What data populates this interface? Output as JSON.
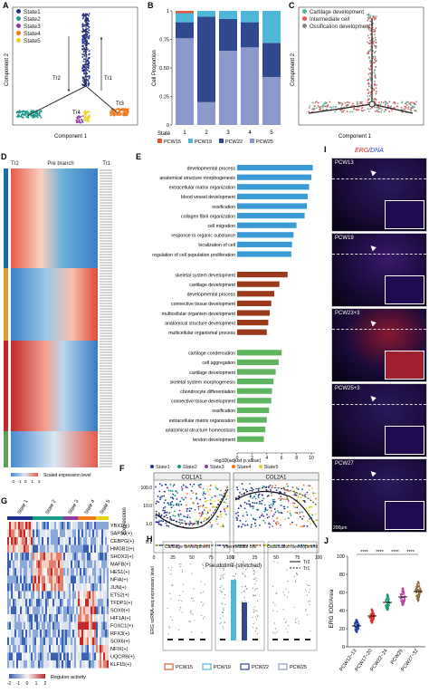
{
  "panel_labels": [
    "A",
    "B",
    "C",
    "D",
    "E",
    "F",
    "G",
    "H",
    "I",
    "J"
  ],
  "panel_a": {
    "legend": [
      {
        "name": "State1",
        "color": "#1f2f8c"
      },
      {
        "name": "State2",
        "color": "#1a9a8a"
      },
      {
        "name": "State3",
        "color": "#8a3fa0"
      },
      {
        "name": "State4",
        "color": "#f07a1a"
      },
      {
        "name": "State5",
        "color": "#e8d21a"
      }
    ],
    "branch_labels": [
      "Tr2",
      "Tr1",
      "Tr3",
      "Tr4"
    ],
    "xlabel": "Component 1",
    "ylabel": "Component 2"
  },
  "panel_b": {
    "chart_data": {
      "type": "bar",
      "stacked": true,
      "categories": [
        "1",
        "2",
        "3",
        "4",
        "5"
      ],
      "category_label": "State",
      "ylabel": "Cell Proportion",
      "ylim": [
        0,
        1
      ],
      "yticks": [
        "0",
        "0.25",
        "0.50",
        "0.75",
        "1"
      ],
      "series": [
        {
          "name": "PCW15",
          "color": "#e05a3a",
          "values": [
            0.02,
            0.0,
            0.0,
            0.0,
            0.0
          ]
        },
        {
          "name": "PCW19",
          "color": "#4fb8d8",
          "values": [
            0.08,
            0.05,
            0.07,
            0.1,
            0.28
          ]
        },
        {
          "name": "PCW22",
          "color": "#2e4a8c",
          "values": [
            0.14,
            0.75,
            0.28,
            0.22,
            0.3
          ]
        },
        {
          "name": "PCW25",
          "color": "#8b9acb",
          "values": [
            0.76,
            0.2,
            0.65,
            0.68,
            0.42
          ]
        }
      ],
      "legend": [
        "PCW15",
        "PCW19",
        "PCW22",
        "PCW25"
      ]
    }
  },
  "panel_c": {
    "legend": [
      {
        "name": "Cartilage development",
        "color": "#4fb8a0"
      },
      {
        "name": "Intermediate cell",
        "color": "#e05a5a"
      },
      {
        "name": "Ossification development",
        "color": "#888888"
      }
    ],
    "xlabel": "Component 1",
    "ylabel": "Component 2"
  },
  "panel_d": {
    "header": {
      "left": "Tr2",
      "center": "Pre branch",
      "right": "Tr1"
    },
    "scale_label": "Scaled expression level",
    "scale_ticks": [
      "-2",
      "-1",
      "0",
      "1",
      "2"
    ]
  },
  "panel_e": {
    "chart_data": {
      "type": "bar",
      "orientation": "horizontal",
      "xlabel": "-log10(adjust p.value)",
      "xticks": [
        "0",
        "2",
        "4",
        "6",
        "8",
        "10"
      ],
      "groups": [
        {
          "color": "#3a9ad6",
          "terms": [
            {
              "label": "developmental process",
              "value": 10.2
            },
            {
              "label": "anatomical structure morphogenesis",
              "value": 10.0
            },
            {
              "label": "extracellular matrix organization",
              "value": 9.7
            },
            {
              "label": "blood vessel development",
              "value": 9.5
            },
            {
              "label": "ossification",
              "value": 9.4
            },
            {
              "label": "collagen fibril organization",
              "value": 9.1
            },
            {
              "label": "cell migration",
              "value": 8.0
            },
            {
              "label": "response to organic substance",
              "value": 7.6
            },
            {
              "label": "localization of cell",
              "value": 7.4
            },
            {
              "label": "regulation of cell population proliferation",
              "value": 7.3
            }
          ]
        },
        {
          "color": "#9a3a1a",
          "terms": [
            {
              "label": "skeletal system development",
              "value": 6.8
            },
            {
              "label": "cartilage development",
              "value": 5.7
            },
            {
              "label": "developmental process",
              "value": 5.0
            },
            {
              "label": "connective tissue development",
              "value": 4.6
            },
            {
              "label": "multicellular organism development",
              "value": 4.4
            },
            {
              "label": "anatomical structure development",
              "value": 4.2
            },
            {
              "label": "multicellular organismal process",
              "value": 4.0
            }
          ]
        },
        {
          "color": "#5fb55f",
          "terms": [
            {
              "label": "cartilage condensation",
              "value": 6.0
            },
            {
              "label": "cell aggregation",
              "value": 5.6
            },
            {
              "label": "cartilage development",
              "value": 5.2
            },
            {
              "label": "skeletal system morphogenesis",
              "value": 4.9
            },
            {
              "label": "chondrocyte differentiation",
              "value": 4.7
            },
            {
              "label": "connective tissue development",
              "value": 4.6
            },
            {
              "label": "ossification",
              "value": 4.3
            },
            {
              "label": "extracellular matrix organization",
              "value": 4.0
            },
            {
              "label": "anatomical structure homeostasis",
              "value": 3.8
            },
            {
              "label": "tendon development",
              "value": 3.6
            }
          ]
        }
      ]
    }
  },
  "panel_f": {
    "legend": [
      {
        "name": "State1",
        "color": "#1f2f8c"
      },
      {
        "name": "State2",
        "color": "#1a9a8a"
      },
      {
        "name": "State3",
        "color": "#8a3fa0"
      },
      {
        "name": "State4",
        "color": "#f07a1a"
      },
      {
        "name": "State5",
        "color": "#e8d21a"
      }
    ],
    "genes": [
      "COL1A1",
      "COL2A1"
    ],
    "ylabel": "Expression",
    "yticks": [
      "100.0",
      "10.0",
      "1.0",
      "0.1"
    ],
    "xticks": [
      "0",
      "25",
      "50",
      "75",
      "100"
    ],
    "xlabel": "Pseudotime (stretched)",
    "line_legend": [
      "Tr2",
      "Tr1"
    ]
  },
  "panel_g": {
    "states": [
      "State 1",
      "State 2",
      "State 3",
      "State 4",
      "State 5"
    ],
    "regulons": [
      "YBX1(+)",
      "SAP30(+)",
      "CEBPG(+)",
      "HMGB1(+)",
      "SHOX2(+)",
      "MAFB(+)",
      "HES1(+)",
      "NFIA(+)",
      "JUN(+)",
      "ETS2(+)",
      "TFDP1(+)",
      "SOX9(+)",
      "HIF1A(+)",
      "FOXC1(+)",
      "RFX3(+)",
      "SOX6(+)",
      "NFIX(+)",
      "UQCRB(+)",
      "KLF15(+)"
    ],
    "scale_label": "Regulon activity",
    "scale_ticks": [
      "-2",
      "-1",
      "0",
      "1",
      "2"
    ]
  },
  "panel_h": {
    "ylabel": "ERG scRNA-seq expression level",
    "facets": [
      "Cartilage development",
      "Intermediate cell",
      "Ossification development"
    ],
    "legend": [
      {
        "name": "PCW15",
        "color": "#e05a3a"
      },
      {
        "name": "PCW19",
        "color": "#4fb8d8"
      },
      {
        "name": "PCW22",
        "color": "#2e4a8c"
      },
      {
        "name": "PCW25",
        "color": "#8b9acb"
      }
    ]
  },
  "panel_i": {
    "title_gene": "ERG",
    "title_sep": "/",
    "title_dna": "DNA",
    "rows": [
      "PCW13",
      "PCW19",
      "PCW23+3",
      "PCW25+3",
      "PCW27"
    ],
    "scale_bar": "200μm",
    "inset_scale": "200μm"
  },
  "panel_j": {
    "ylabel": "ERG IOD/Area",
    "yticks": [
      "0",
      "20",
      "40",
      "60",
      "80",
      "100"
    ],
    "categories": [
      "PCW12~13",
      "PCW17~20",
      "PCW22~24",
      "PCW25",
      "PCW27~32"
    ],
    "colors": [
      "#1f3fa0",
      "#e0302a",
      "#1a9a6a",
      "#c040a0",
      "#8a6a3a"
    ],
    "medians": [
      23,
      34,
      49,
      55,
      61
    ],
    "significance": [
      "****",
      "****",
      "****",
      "****"
    ]
  }
}
